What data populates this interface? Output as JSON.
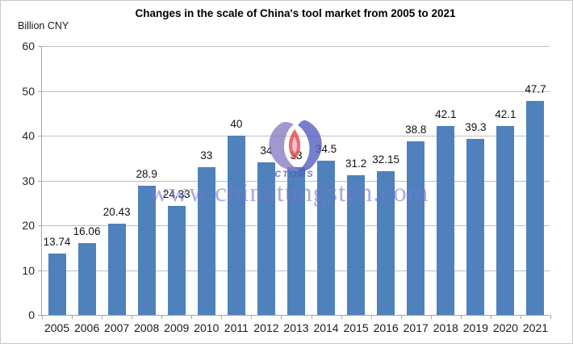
{
  "chart_data": {
    "type": "bar",
    "title": "Changes in the scale of China's tool market from 2005 to 2021",
    "unit_label": "Billion CNY",
    "categories": [
      "2005",
      "2006",
      "2007",
      "2008",
      "2009",
      "2010",
      "2011",
      "2012",
      "2013",
      "2014",
      "2015",
      "2016",
      "2017",
      "2018",
      "2019",
      "2020",
      "2021"
    ],
    "values": [
      13.74,
      16.06,
      20.43,
      28.9,
      24.33,
      33,
      40,
      34,
      33,
      34.5,
      31.2,
      32.15,
      38.8,
      42.1,
      39.3,
      42.1,
      47.7
    ],
    "value_labels": [
      "13.74",
      "16.06",
      "20.43",
      "28.9",
      "24.33",
      "33",
      "40",
      "34",
      "33",
      "34.5",
      "31.2",
      "32.15",
      "38.8",
      "42.1",
      "39.3",
      "42.1",
      "47.7"
    ],
    "xlabel": "",
    "ylabel": "Billion CNY",
    "ylim": [
      0,
      60
    ],
    "yticks": [
      0,
      10,
      20,
      30,
      40,
      50,
      60
    ],
    "grid": true,
    "legend_position": "none",
    "bar_color": "#4f81bd",
    "grid_color": "#bfbfbf",
    "axis_color": "#a6a6a6",
    "watermark": {
      "text": "www.chinatungsten.com",
      "logo_text": "CTOMS",
      "text_color": "#7676cc"
    }
  }
}
